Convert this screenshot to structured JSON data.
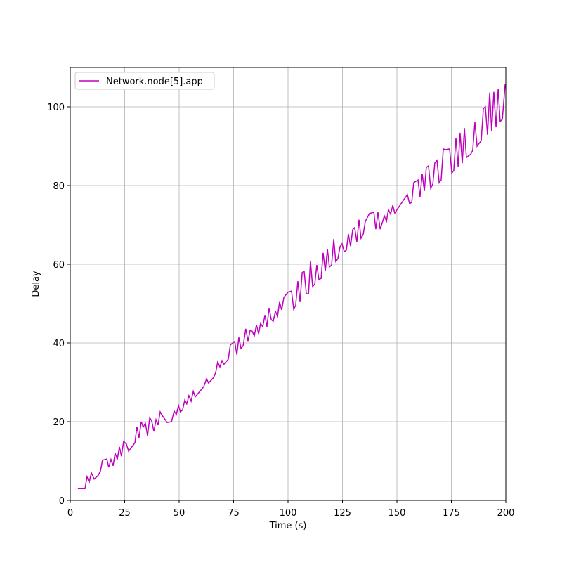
{
  "chart_data": {
    "type": "line",
    "xlabel": "Time (s)",
    "ylabel": "Delay",
    "xlim": [
      0,
      200
    ],
    "ylim": [
      0,
      110
    ],
    "xticks": [
      0,
      25,
      50,
      75,
      100,
      125,
      150,
      175,
      200
    ],
    "yticks": [
      0,
      20,
      40,
      60,
      80,
      100
    ],
    "grid": true,
    "legend": "upper left",
    "x": [
      3.5,
      6.8,
      7.7,
      8.7,
      9.7,
      11,
      12.9,
      13.9,
      14.8,
      16.8,
      17.7,
      18.7,
      19.7,
      20.6,
      21.6,
      22.6,
      23.5,
      24.5,
      25.8,
      26.8,
      29.7,
      30.6,
      31.6,
      32.6,
      33.5,
      34.5,
      35.5,
      36.5,
      37.4,
      38.4,
      39.4,
      40.3,
      41.3,
      42.6,
      44.5,
      46.5,
      47.7,
      48.7,
      49.7,
      50.6,
      51.6,
      52.6,
      53.5,
      54.5,
      55.5,
      56.5,
      57.4,
      61.3,
      62.6,
      63.5,
      65.8,
      66.8,
      67.7,
      68.7,
      69.7,
      70.6,
      72.6,
      73.5,
      75.5,
      76.5,
      77.4,
      78.4,
      79.4,
      80.6,
      81.6,
      82.6,
      83.5,
      84.5,
      85.5,
      86.5,
      87.4,
      88.4,
      89.4,
      90.3,
      91.3,
      92.3,
      93.2,
      94.2,
      95.2,
      96.1,
      97.1,
      98.1,
      100,
      101.6,
      102.6,
      103.5,
      104.5,
      105.5,
      106.5,
      107.4,
      108.4,
      109.4,
      110.3,
      111.3,
      112.3,
      113.2,
      114.2,
      115.2,
      116.1,
      117.1,
      118.1,
      119,
      120,
      121,
      121.9,
      122.9,
      123.9,
      124.8,
      125.8,
      126.8,
      127.7,
      128.7,
      129.7,
      130.6,
      131.6,
      132.6,
      133.5,
      134.5,
      135.5,
      137.4,
      139.4,
      140.3,
      141.3,
      142.3,
      143.2,
      144.2,
      145.2,
      146.1,
      147.1,
      148.1,
      149,
      152.9,
      154.8,
      155.8,
      156.8,
      157.7,
      159.7,
      160.6,
      161.6,
      162.6,
      163.5,
      164.5,
      165.5,
      166.5,
      167.4,
      168.4,
      169.4,
      170.3,
      171.3,
      172.3,
      174.2,
      175.2,
      176.1,
      177.1,
      178.1,
      179,
      180,
      181,
      181.9,
      183.9,
      184.8,
      185.8,
      186.8,
      188.7,
      189.7,
      190.6,
      191.6,
      192.6,
      193.5,
      194.5,
      195.5,
      196.5,
      197.4,
      198.4,
      199.7
    ],
    "series": [
      {
        "name": "Network.node[5].app",
        "color": "#bf00bf",
        "values": [
          3,
          3,
          6,
          4.6,
          7,
          5.4,
          6.4,
          7.5,
          10.2,
          10.5,
          8.4,
          10.4,
          8.8,
          12,
          10.4,
          13.6,
          11.2,
          15,
          14.3,
          12.5,
          14.6,
          18.7,
          15.9,
          20,
          18.6,
          19.6,
          16.4,
          21,
          20.2,
          17.5,
          20.5,
          19.1,
          22.5,
          21.3,
          19.8,
          20,
          22.7,
          21.8,
          24.1,
          22.5,
          23,
          25.5,
          24.5,
          26.6,
          25.2,
          27.7,
          26.3,
          28.9,
          30.9,
          29.8,
          31.2,
          32.5,
          35.2,
          33.9,
          35.5,
          34.6,
          35.9,
          39.5,
          40.4,
          37,
          41.4,
          38.6,
          39.3,
          43.6,
          40.5,
          43.2,
          43,
          41.8,
          44.6,
          42.3,
          45,
          44.1,
          47.1,
          44.1,
          48.9,
          45.9,
          45.5,
          48,
          46.8,
          50.4,
          48.4,
          51.6,
          52.9,
          53.2,
          48.6,
          49.5,
          55.7,
          50.4,
          57.9,
          58.2,
          52.5,
          52.5,
          60.7,
          54.3,
          55,
          59.8,
          56.1,
          56.4,
          62.9,
          58.2,
          63.8,
          59.3,
          59.8,
          66.4,
          60.7,
          61.4,
          64.5,
          65.2,
          63.2,
          63.6,
          67.7,
          64.6,
          68.8,
          69.3,
          65.7,
          71.3,
          66.6,
          67.5,
          70.9,
          72.9,
          73.2,
          68.9,
          73.2,
          68.9,
          70.4,
          72.3,
          70.9,
          73.9,
          72.7,
          75,
          73,
          76.2,
          77.7,
          75.4,
          75.7,
          80.7,
          81.4,
          77,
          83,
          78.6,
          84.6,
          85,
          79.3,
          80.4,
          85.7,
          86.4,
          80.7,
          81.4,
          89.3,
          89.1,
          89.3,
          83.2,
          83.8,
          92.1,
          84.8,
          93.4,
          85.7,
          94.6,
          87.1,
          88,
          88.9,
          96.1,
          90,
          91.4,
          99.5,
          100,
          92.9,
          103.6,
          93.9,
          103.8,
          94.8,
          104.6,
          96.3,
          96.8,
          105.7
        ]
      }
    ]
  }
}
